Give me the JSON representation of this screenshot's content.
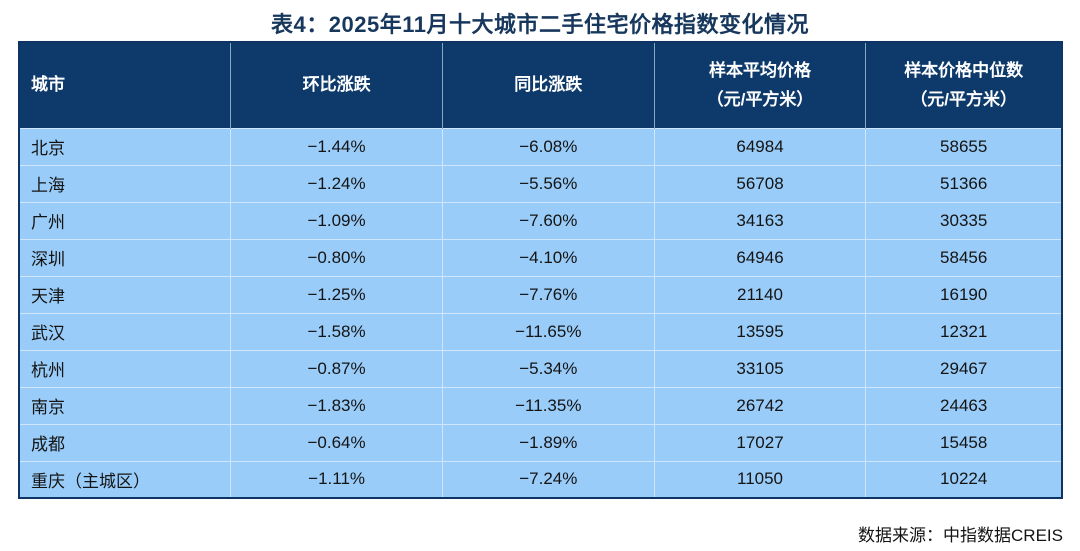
{
  "title": "表4：2025年11月十大城市二手住宅价格指数变化情况",
  "source_note": "数据来源：中指数据CREIS",
  "colors": {
    "header_bg": "#0d3a6b",
    "row_bg": "#99ccf8",
    "title_text": "#17375d",
    "grid_line": "#cfe6fc",
    "outer_border": "#0d3463",
    "header_text": "#ffffff",
    "body_text": "#141414"
  },
  "chart_data": {
    "type": "table",
    "title": "表4：2025年11月十大城市二手住宅价格指数变化情况",
    "source": "数据来源：中指数据CREIS",
    "headers": [
      {
        "line1": "城市",
        "line2": ""
      },
      {
        "line1": "环比涨跌",
        "line2": ""
      },
      {
        "line1": "同比涨跌",
        "line2": ""
      },
      {
        "line1": "样本平均价格",
        "line2": "（元/平方米）"
      },
      {
        "line1": "样本价格中位数",
        "line2": "（元/平方米）"
      }
    ],
    "rows": [
      {
        "city": "北京",
        "mom": "−1.44%",
        "yoy": "−6.08%",
        "avg_price": "64984",
        "median_price": "58655"
      },
      {
        "city": "上海",
        "mom": "−1.24%",
        "yoy": "−5.56%",
        "avg_price": "56708",
        "median_price": "51366"
      },
      {
        "city": "广州",
        "mom": "−1.09%",
        "yoy": "−7.60%",
        "avg_price": "34163",
        "median_price": "30335"
      },
      {
        "city": "深圳",
        "mom": "−0.80%",
        "yoy": "−4.10%",
        "avg_price": "64946",
        "median_price": "58456"
      },
      {
        "city": "天津",
        "mom": "−1.25%",
        "yoy": "−7.76%",
        "avg_price": "21140",
        "median_price": "16190"
      },
      {
        "city": "武汉",
        "mom": "−1.58%",
        "yoy": "−11.65%",
        "avg_price": "13595",
        "median_price": "12321"
      },
      {
        "city": "杭州",
        "mom": "−0.87%",
        "yoy": "−5.34%",
        "avg_price": "33105",
        "median_price": "29467"
      },
      {
        "city": "南京",
        "mom": "−1.83%",
        "yoy": "−11.35%",
        "avg_price": "26742",
        "median_price": "24463"
      },
      {
        "city": "成都",
        "mom": "−0.64%",
        "yoy": "−1.89%",
        "avg_price": "17027",
        "median_price": "15458"
      },
      {
        "city": "重庆（主城区）",
        "mom": "−1.11%",
        "yoy": "−7.24%",
        "avg_price": "11050",
        "median_price": "10224"
      }
    ]
  }
}
